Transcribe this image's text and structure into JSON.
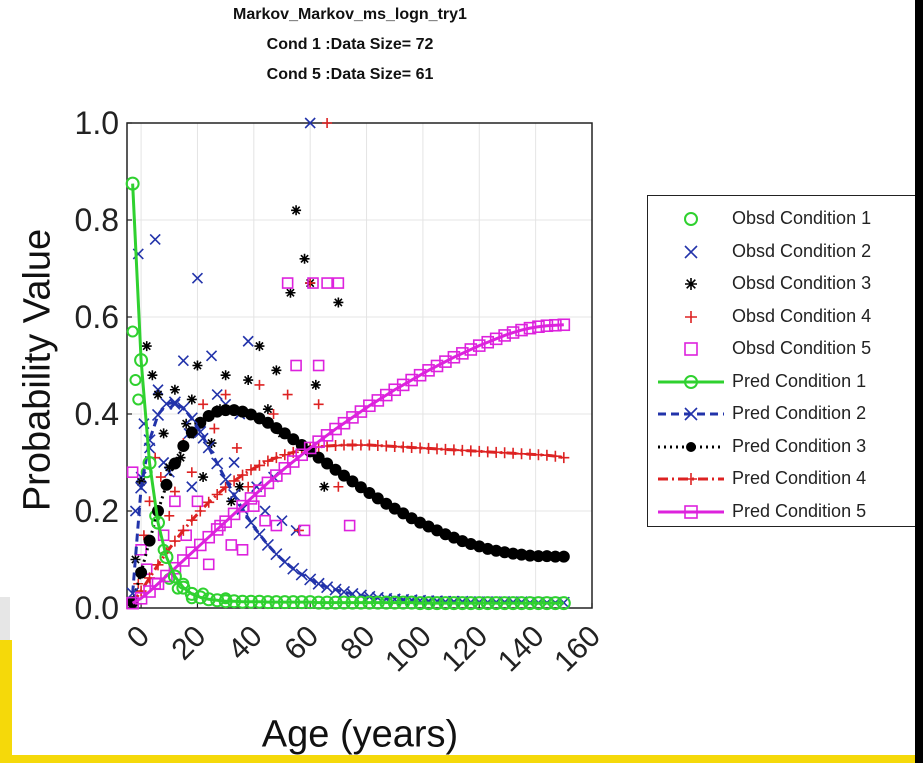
{
  "chart_data": {
    "type": "scatter",
    "title": [
      "Markov_Markov_ms_logn_try1",
      "Cond 1 :Data Size= 72",
      "Cond 5 :Data Size= 61"
    ],
    "xlabel": "Age (years)",
    "ylabel": "Probability Value",
    "xlim": [
      -5,
      160
    ],
    "ylim": [
      0,
      1
    ],
    "x_ticks": [
      "0",
      "20",
      "40",
      "60",
      "80",
      "100",
      "120",
      "140",
      "160"
    ],
    "y_ticks": [
      "0.0",
      "0.2",
      "0.4",
      "0.6",
      "0.8",
      "1.0"
    ],
    "grid": true,
    "legend_placement": "outside-right",
    "colors": {
      "cond1": "#2fd12f",
      "cond2": "#2233aa",
      "cond3": "#000000",
      "cond4": "#dd2222",
      "cond5": "#dd22dd"
    },
    "legend": [
      {
        "label": "Obsd Condition 1",
        "series": "cond1",
        "kind": "obsd",
        "marker": "circle"
      },
      {
        "label": "Obsd Condition 2",
        "series": "cond2",
        "kind": "obsd",
        "marker": "x"
      },
      {
        "label": "Obsd Condition 3",
        "series": "cond3",
        "kind": "obsd",
        "marker": "star"
      },
      {
        "label": "Obsd Condition 4",
        "series": "cond4",
        "kind": "obsd",
        "marker": "plus"
      },
      {
        "label": "Obsd Condition 5",
        "series": "cond5",
        "kind": "obsd",
        "marker": "square"
      },
      {
        "label": "Pred Condition 1",
        "series": "cond1",
        "kind": "pred",
        "marker": "circle",
        "line": "solid"
      },
      {
        "label": "Pred Condition 2",
        "series": "cond2",
        "kind": "pred",
        "marker": "x",
        "line": "dashed"
      },
      {
        "label": "Pred Condition 3",
        "series": "cond3",
        "kind": "pred",
        "marker": "dot",
        "line": "dotted"
      },
      {
        "label": "Pred Condition 4",
        "series": "cond4",
        "kind": "pred",
        "marker": "plus",
        "line": "dashdot"
      },
      {
        "label": "Pred Condition 5",
        "series": "cond5",
        "kind": "pred",
        "marker": "square",
        "line": "solid"
      }
    ],
    "predicted": {
      "x": [
        -3,
        0,
        3,
        6,
        9,
        12,
        15,
        18,
        21,
        24,
        27,
        30,
        33,
        36,
        39,
        42,
        45,
        48,
        51,
        54,
        57,
        60,
        63,
        66,
        69,
        72,
        75,
        78,
        81,
        84,
        87,
        90,
        93,
        96,
        99,
        102,
        105,
        108,
        111,
        114,
        117,
        120,
        123,
        126,
        129,
        132,
        135,
        138,
        141,
        144,
        147,
        150
      ],
      "series": [
        {
          "name": "Pred Condition 1",
          "key": "cond1",
          "values": [
            0.875,
            0.511,
            0.299,
            0.176,
            0.105,
            0.065,
            0.042,
            0.029,
            0.022,
            0.018,
            0.016,
            0.014,
            0.014,
            0.013,
            0.013,
            0.013,
            0.012,
            0.012,
            0.012,
            0.012,
            0.012,
            0.012,
            0.011,
            0.011,
            0.011,
            0.011,
            0.011,
            0.011,
            0.011,
            0.011,
            0.011,
            0.011,
            0.011,
            0.011,
            0.01,
            0.01,
            0.01,
            0.01,
            0.01,
            0.01,
            0.01,
            0.01,
            0.01,
            0.01,
            0.01,
            0.01,
            0.01,
            0.01,
            0.01,
            0.01,
            0.01,
            0.01
          ]
        },
        {
          "name": "Pred Condition 2",
          "key": "cond2",
          "values": [
            0.03,
            0.248,
            0.346,
            0.398,
            0.421,
            0.424,
            0.412,
            0.391,
            0.363,
            0.331,
            0.298,
            0.265,
            0.233,
            0.204,
            0.176,
            0.152,
            0.13,
            0.111,
            0.095,
            0.081,
            0.069,
            0.059,
            0.05,
            0.043,
            0.038,
            0.033,
            0.029,
            0.026,
            0.023,
            0.021,
            0.019,
            0.018,
            0.017,
            0.016,
            0.015,
            0.014,
            0.014,
            0.013,
            0.013,
            0.013,
            0.012,
            0.012,
            0.012,
            0.012,
            0.012,
            0.012,
            0.012,
            0.011,
            0.011,
            0.011,
            0.011,
            0.011
          ]
        },
        {
          "name": "Pred Condition 3",
          "key": "cond3",
          "values": [
            0.012,
            0.073,
            0.139,
            0.2,
            0.254,
            0.298,
            0.334,
            0.362,
            0.382,
            0.396,
            0.405,
            0.408,
            0.408,
            0.405,
            0.399,
            0.391,
            0.382,
            0.371,
            0.36,
            0.348,
            0.336,
            0.323,
            0.31,
            0.298,
            0.285,
            0.273,
            0.261,
            0.249,
            0.237,
            0.226,
            0.215,
            0.205,
            0.195,
            0.185,
            0.176,
            0.168,
            0.16,
            0.152,
            0.145,
            0.138,
            0.132,
            0.127,
            0.122,
            0.118,
            0.115,
            0.112,
            0.11,
            0.108,
            0.107,
            0.107,
            0.106,
            0.106
          ]
        },
        {
          "name": "Pred Condition 4",
          "key": "cond4",
          "values": [
            0.01,
            0.035,
            0.062,
            0.089,
            0.114,
            0.138,
            0.16,
            0.181,
            0.2,
            0.218,
            0.234,
            0.249,
            0.262,
            0.274,
            0.285,
            0.294,
            0.303,
            0.31,
            0.316,
            0.321,
            0.326,
            0.329,
            0.332,
            0.334,
            0.335,
            0.336,
            0.336,
            0.336,
            0.336,
            0.335,
            0.334,
            0.333,
            0.332,
            0.331,
            0.33,
            0.329,
            0.328,
            0.327,
            0.326,
            0.325,
            0.324,
            0.323,
            0.322,
            0.321,
            0.32,
            0.319,
            0.318,
            0.317,
            0.316,
            0.315,
            0.313,
            0.31
          ]
        },
        {
          "name": "Pred Condition 5",
          "key": "cond5",
          "values": [
            0.01,
            0.02,
            0.034,
            0.05,
            0.066,
            0.082,
            0.098,
            0.114,
            0.13,
            0.146,
            0.162,
            0.178,
            0.194,
            0.21,
            0.226,
            0.242,
            0.258,
            0.273,
            0.288,
            0.302,
            0.316,
            0.33,
            0.343,
            0.356,
            0.369,
            0.381,
            0.393,
            0.405,
            0.417,
            0.428,
            0.439,
            0.45,
            0.46,
            0.47,
            0.48,
            0.49,
            0.499,
            0.508,
            0.517,
            0.525,
            0.533,
            0.541,
            0.548,
            0.555,
            0.562,
            0.568,
            0.573,
            0.577,
            0.58,
            0.582,
            0.583,
            0.584
          ]
        }
      ]
    },
    "observed": [
      {
        "name": "Obsd Condition 1",
        "key": "cond1",
        "points": [
          [
            -3,
            0.57
          ],
          [
            -2,
            0.47
          ],
          [
            -1,
            0.43
          ],
          [
            2,
            0.28
          ],
          [
            5,
            0.19
          ],
          [
            8,
            0.12
          ],
          [
            10,
            0.06
          ],
          [
            13,
            0.04
          ],
          [
            15,
            0.05
          ],
          [
            18,
            0.02
          ],
          [
            22,
            0.03
          ],
          [
            30,
            0.02
          ]
        ]
      },
      {
        "name": "Obsd Condition 2",
        "key": "cond2",
        "points": [
          [
            -1,
            0.73
          ],
          [
            5,
            0.76
          ],
          [
            -2,
            0.2
          ],
          [
            0,
            0.27
          ],
          [
            1,
            0.38
          ],
          [
            3,
            0.33
          ],
          [
            6,
            0.45
          ],
          [
            8,
            0.3
          ],
          [
            10,
            0.28
          ],
          [
            12,
            0.42
          ],
          [
            15,
            0.51
          ],
          [
            17,
            0.36
          ],
          [
            18,
            0.25
          ],
          [
            20,
            0.68
          ],
          [
            22,
            0.35
          ],
          [
            25,
            0.52
          ],
          [
            27,
            0.44
          ],
          [
            30,
            0.42
          ],
          [
            33,
            0.3
          ],
          [
            35,
            0.4
          ],
          [
            38,
            0.55
          ],
          [
            41,
            0.25
          ],
          [
            44,
            0.2
          ],
          [
            47,
            0.27
          ],
          [
            50,
            0.18
          ],
          [
            55,
            0.16
          ],
          [
            60,
            1.0
          ]
        ]
      },
      {
        "name": "Obsd Condition 3",
        "key": "cond3",
        "points": [
          [
            -2,
            0.1
          ],
          [
            0,
            0.26
          ],
          [
            2,
            0.54
          ],
          [
            4,
            0.48
          ],
          [
            6,
            0.44
          ],
          [
            8,
            0.36
          ],
          [
            10,
            0.29
          ],
          [
            12,
            0.45
          ],
          [
            14,
            0.31
          ],
          [
            16,
            0.38
          ],
          [
            18,
            0.43
          ],
          [
            20,
            0.5
          ],
          [
            22,
            0.27
          ],
          [
            25,
            0.34
          ],
          [
            28,
            0.41
          ],
          [
            30,
            0.48
          ],
          [
            32,
            0.22
          ],
          [
            35,
            0.25
          ],
          [
            38,
            0.47
          ],
          [
            42,
            0.54
          ],
          [
            45,
            0.41
          ],
          [
            48,
            0.49
          ],
          [
            50,
            0.36
          ],
          [
            53,
            0.65
          ],
          [
            55,
            0.82
          ],
          [
            58,
            0.72
          ],
          [
            60,
            0.67
          ],
          [
            62,
            0.46
          ],
          [
            65,
            0.25
          ],
          [
            70,
            0.63
          ]
        ]
      },
      {
        "name": "Obsd Condition 4",
        "key": "cond4",
        "points": [
          [
            -1,
            0.05
          ],
          [
            1,
            0.15
          ],
          [
            3,
            0.22
          ],
          [
            5,
            0.31
          ],
          [
            7,
            0.27
          ],
          [
            10,
            0.19
          ],
          [
            12,
            0.24
          ],
          [
            15,
            0.34
          ],
          [
            18,
            0.28
          ],
          [
            22,
            0.42
          ],
          [
            26,
            0.37
          ],
          [
            30,
            0.44
          ],
          [
            34,
            0.33
          ],
          [
            38,
            0.25
          ],
          [
            42,
            0.46
          ],
          [
            47,
            0.4
          ],
          [
            52,
            0.44
          ],
          [
            56,
            0.16
          ],
          [
            60,
            0.67
          ],
          [
            63,
            0.42
          ],
          [
            66,
            1.0
          ],
          [
            70,
            0.25
          ]
        ]
      },
      {
        "name": "Obsd Condition 5",
        "key": "cond5",
        "points": [
          [
            -3,
            0.28
          ],
          [
            0,
            0.12
          ],
          [
            2,
            0.08
          ],
          [
            5,
            0.05
          ],
          [
            8,
            0.15
          ],
          [
            12,
            0.22
          ],
          [
            16,
            0.15
          ],
          [
            20,
            0.22
          ],
          [
            24,
            0.09
          ],
          [
            28,
            0.17
          ],
          [
            32,
            0.13
          ],
          [
            36,
            0.12
          ],
          [
            40,
            0.21
          ],
          [
            44,
            0.18
          ],
          [
            48,
            0.17
          ],
          [
            52,
            0.67
          ],
          [
            55,
            0.5
          ],
          [
            58,
            0.16
          ],
          [
            61,
            0.67
          ],
          [
            63,
            0.5
          ],
          [
            66,
            0.67
          ],
          [
            70,
            0.67
          ],
          [
            74,
            0.17
          ]
        ]
      }
    ]
  }
}
